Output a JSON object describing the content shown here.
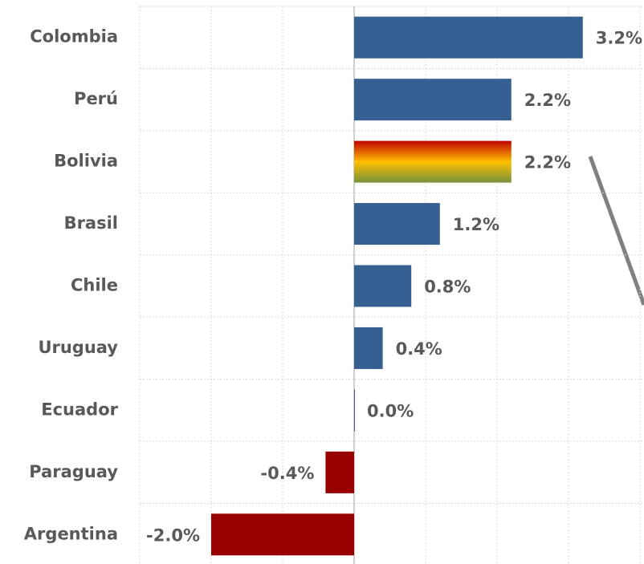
{
  "chart_data": {
    "type": "hbar",
    "categories": [
      "Colombia",
      "Perú",
      "Bolivia",
      "Brasil",
      "Chile",
      "Uruguay",
      "Ecuador",
      "Paraguay",
      "Argentina"
    ],
    "values": [
      3.2,
      2.2,
      2.2,
      1.2,
      0.8,
      0.4,
      0.0,
      -0.4,
      -2.0
    ],
    "value_labels": [
      "3.2%",
      "2.2%",
      "2.2%",
      "1.2%",
      "0.8%",
      "0.4%",
      "0.0%",
      "-0.4%",
      "-2.0%"
    ],
    "colors": [
      "#366092",
      "#366092",
      "gradient",
      "#366092",
      "#366092",
      "#366092",
      "#366092",
      "#990000",
      "#990000"
    ],
    "gradient_colors": [
      "#c00000",
      "#ffc000",
      "#76923c"
    ],
    "xlim": [
      -3,
      4
    ],
    "xticks": [
      -3,
      -2,
      -1,
      0,
      1,
      2,
      3,
      4
    ],
    "grid": true
  }
}
